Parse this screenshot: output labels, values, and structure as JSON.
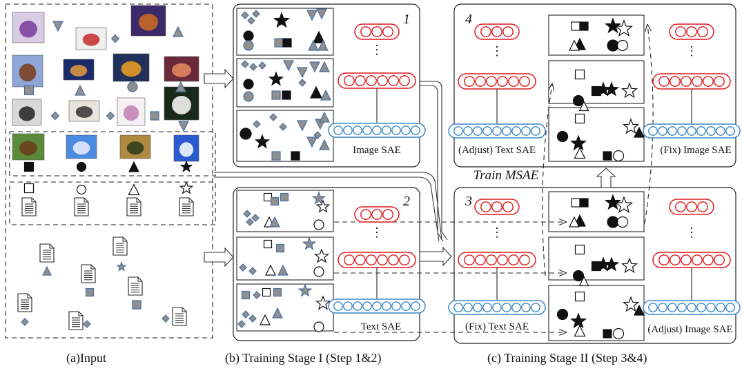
{
  "captions": {
    "input": "(a)Input",
    "stage1": "(b) Training Stage I (Step 1&2)",
    "stage2": "(c) Training Stage II (Step 3&4)"
  },
  "panels": {
    "step1": {
      "number": "1",
      "sae_label": "Image SAE"
    },
    "step2": {
      "number": "2",
      "sae_label": "Text SAE"
    },
    "step3": {
      "number": "3",
      "left_label": "(Fix) Text SAE",
      "right_label": "(Adjust) Image SAE"
    },
    "step4": {
      "number": "4",
      "left_label": "(Adjust) Text SAE",
      "right_label": "(Fix) Image SAE"
    }
  },
  "train_label": "Train MSAE",
  "ellipsis": "⋮",
  "colors": {
    "red": "#e0181c",
    "blue": "#3a86c8",
    "gray": "#8f8f8f",
    "shape_stroke": "#4a6fa0"
  }
}
